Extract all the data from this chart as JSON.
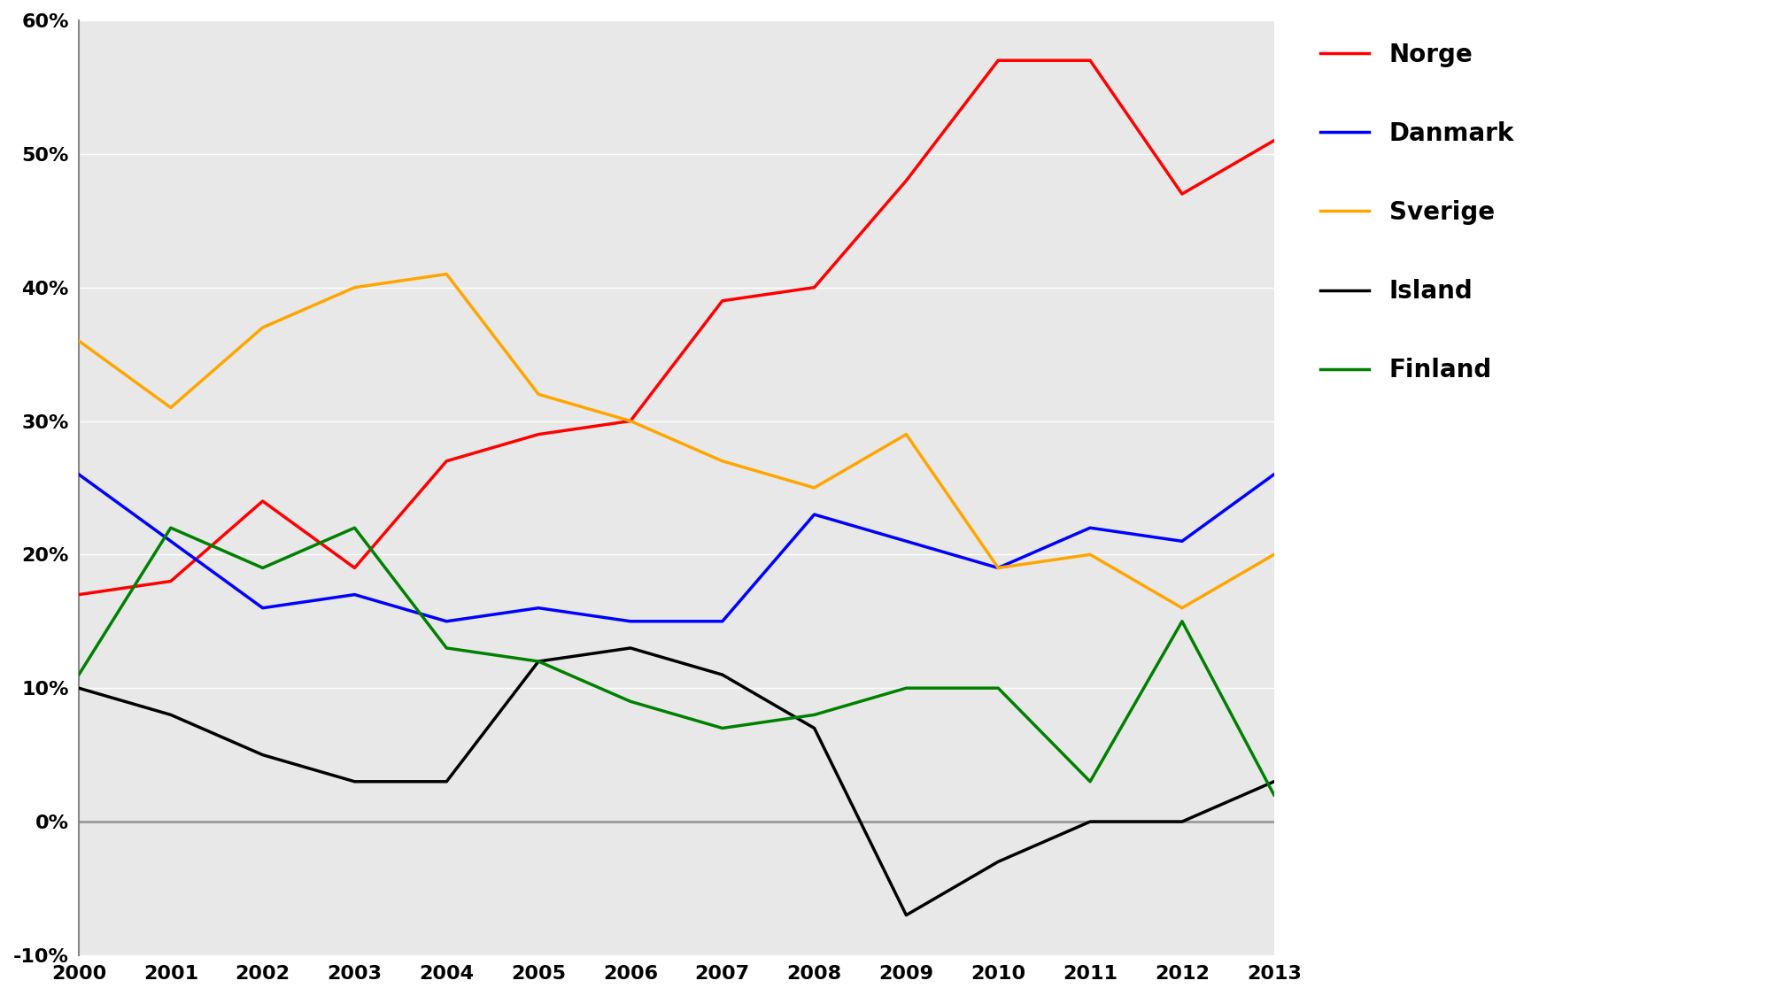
{
  "years": [
    2000,
    2001,
    2002,
    2003,
    2004,
    2005,
    2006,
    2007,
    2008,
    2009,
    2010,
    2011,
    2012,
    2013
  ],
  "series": {
    "Norge": {
      "values": [
        17,
        18,
        24,
        19,
        27,
        29,
        30,
        39,
        40,
        48,
        57,
        57,
        47,
        51
      ],
      "color": "#FF0000",
      "linewidth": 2.5
    },
    "Danmark": {
      "values": [
        26,
        21,
        16,
        17,
        15,
        16,
        15,
        15,
        23,
        21,
        19,
        22,
        21,
        26
      ],
      "color": "#0000FF",
      "linewidth": 2.5
    },
    "Sverige": {
      "values": [
        36,
        31,
        37,
        40,
        41,
        32,
        30,
        27,
        25,
        29,
        19,
        20,
        16,
        20
      ],
      "color": "#FFA500",
      "linewidth": 2.5
    },
    "Island": {
      "values": [
        10,
        8,
        5,
        3,
        3,
        12,
        13,
        11,
        7,
        -7,
        -3,
        0,
        0,
        3
      ],
      "color": "#000000",
      "linewidth": 2.5
    },
    "Finland": {
      "values": [
        11,
        22,
        19,
        22,
        13,
        12,
        9,
        7,
        8,
        10,
        10,
        3,
        15,
        2
      ],
      "color": "#008000",
      "linewidth": 2.5
    }
  },
  "ylim": [
    -10,
    60
  ],
  "yticks": [
    -10,
    0,
    10,
    20,
    30,
    40,
    50,
    60
  ],
  "ytick_labels": [
    "-10%",
    "0%",
    "10%",
    "20%",
    "30%",
    "40%",
    "50%",
    "60%"
  ],
  "fig_background": "#FFFFFF",
  "plot_background": "#E8E8E8",
  "legend_order": [
    "Norge",
    "Danmark",
    "Sverige",
    "Island",
    "Finland"
  ],
  "grid_color": "#FFFFFF",
  "zero_line_color": "#999999",
  "tick_fontsize": 16,
  "legend_fontsize": 20,
  "left_spine_color": "#888888"
}
